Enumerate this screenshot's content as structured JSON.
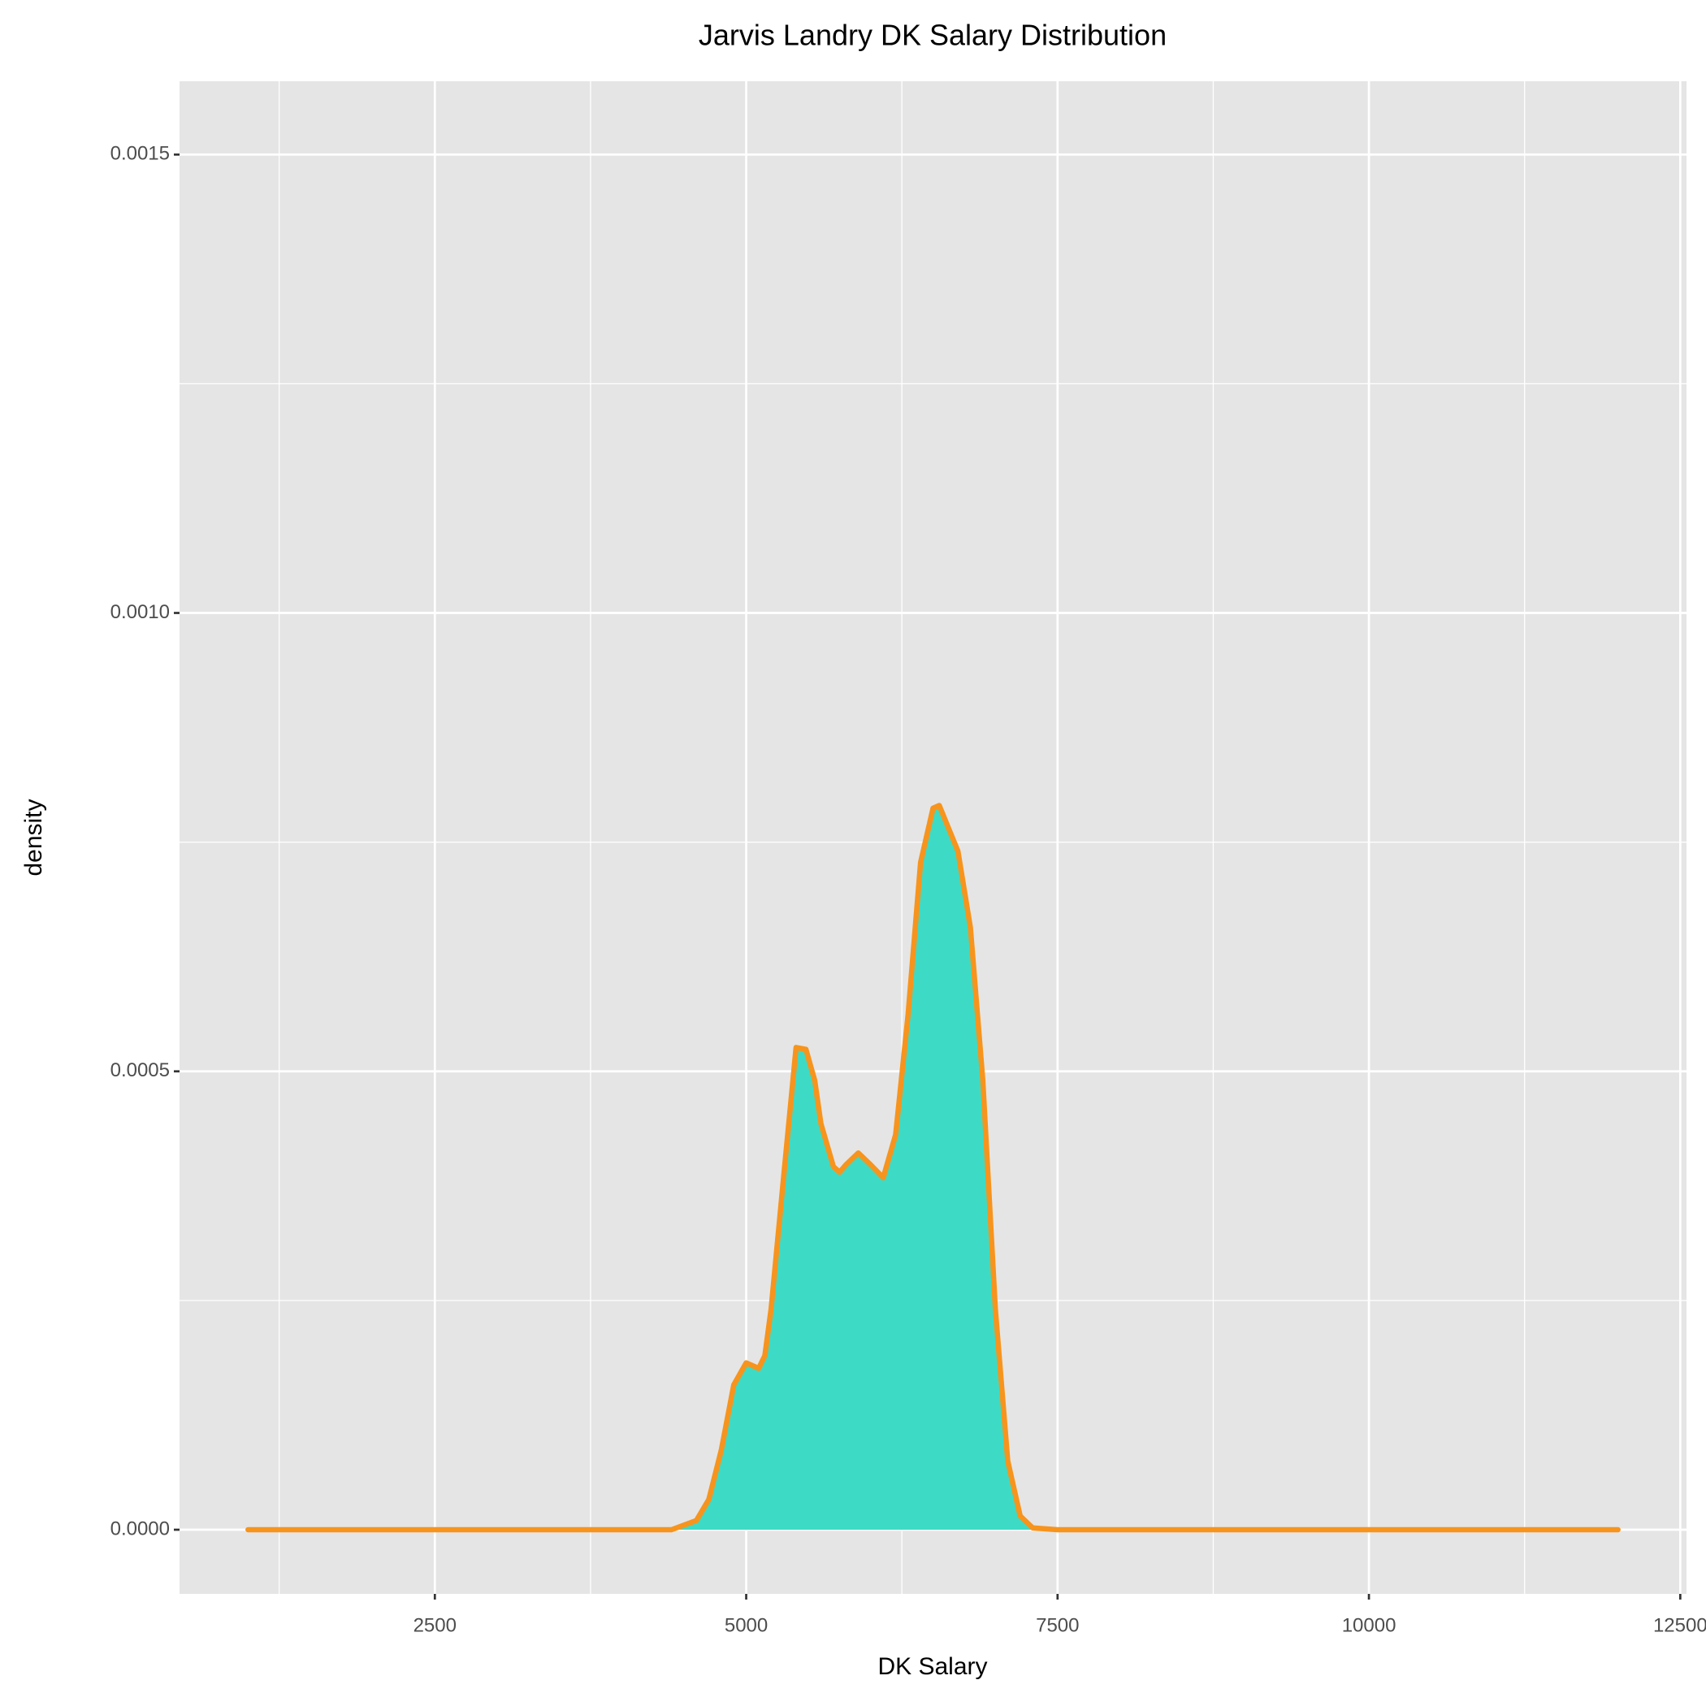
{
  "chart_data": {
    "type": "area",
    "title": "Jarvis Landry DK Salary Distribution",
    "x_label": "DK Salary",
    "y_label": "density",
    "x": [
      1000,
      4400,
      4600,
      4700,
      4800,
      4900,
      5000,
      5100,
      5150,
      5200,
      5300,
      5400,
      5480,
      5550,
      5600,
      5700,
      5750,
      5800,
      5900,
      6000,
      6100,
      6200,
      6300,
      6400,
      6500,
      6550,
      6700,
      6800,
      6900,
      7000,
      7100,
      7200,
      7300,
      7500,
      12000
    ],
    "series": [
      {
        "name": "density",
        "color": "#f7941d",
        "fill": "#3ddbc5",
        "values": [
          0,
          0,
          1e-05,
          3.3e-05,
          8.7e-05,
          0.000158,
          0.000182,
          0.000176,
          0.00019,
          0.000241,
          0.000384,
          0.000526,
          0.000524,
          0.00049,
          0.000443,
          0.000396,
          0.00039,
          0.000398,
          0.000411,
          0.000398,
          0.000384,
          0.000431,
          0.000562,
          0.000728,
          0.000787,
          0.00079,
          0.00074,
          0.000657,
          0.00049,
          0.000241,
          7.5e-05,
          1.5e-05,
          2e-06,
          0,
          0
        ]
      }
    ],
    "xlim": [
      450,
      12550
    ],
    "ylim": [
      -7e-05,
      0.00158
    ],
    "xticks": [
      2500,
      5000,
      7500,
      10000,
      12500
    ],
    "x_minor_ticks": [
      1250,
      3750,
      6250,
      8750,
      11250
    ],
    "yticks": [
      {
        "value": 0,
        "label": "0.0000"
      },
      {
        "value": 0.0005,
        "label": "0.0005"
      },
      {
        "value": 0.001,
        "label": "0.0010"
      },
      {
        "value": 0.0015,
        "label": "0.0015"
      }
    ],
    "y_minor_ticks": [
      0.00025,
      0.00075,
      0.00125
    ],
    "grid": true
  }
}
